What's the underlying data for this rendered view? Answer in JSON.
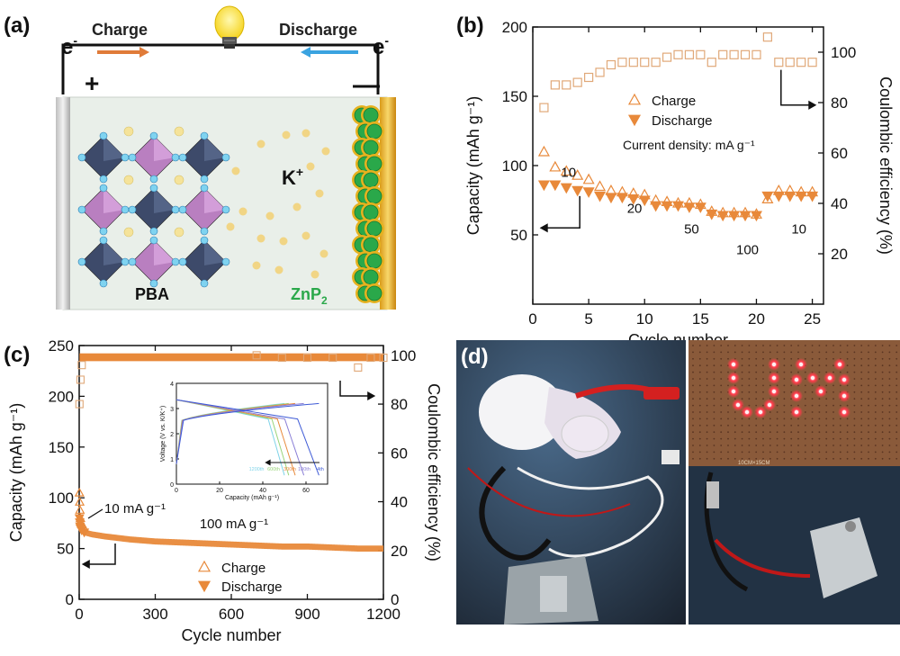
{
  "panel_a": {
    "label": "(a)",
    "charge_label": "Charge",
    "discharge_label": "Discharge",
    "electron_left": "e",
    "electron_right": "e",
    "electron_sup": "-",
    "plus_sign": "+",
    "minus_sign": "—",
    "cathode_label": "PBA",
    "anode_label": "ZnP",
    "anode_sub": "2",
    "ion_label": "K",
    "ion_sup": "+",
    "colors": {
      "charge_arrow": "#e07b39",
      "discharge_arrow": "#3aa3e0",
      "anode": "#2aa84a",
      "ion": "#f2d27a"
    }
  },
  "panel_b": {
    "label": "(b)",
    "chart_data": {
      "type": "scatter",
      "xlabel": "Cycle number",
      "ylabel_left": "Capacity (mAh g⁻¹)",
      "ylabel_right": "Coulombic efficiency (%)",
      "xlim": [
        0,
        26
      ],
      "ylim_left": [
        0,
        200
      ],
      "ylim_right": [
        0,
        110
      ],
      "xticks": [
        0,
        5,
        10,
        15,
        20,
        25
      ],
      "yticks_left": [
        50,
        100,
        150,
        200
      ],
      "yticks_right": [
        20,
        40,
        60,
        80,
        100
      ],
      "legend": [
        "Charge",
        "Discharge"
      ],
      "annotation": "Current density: mA g⁻¹",
      "rate_labels": [
        "10",
        "20",
        "50",
        "100",
        "10"
      ],
      "series": [
        {
          "name": "Charge",
          "axis": "left",
          "marker": "open-triangle",
          "x": [
            1,
            2,
            3,
            4,
            5,
            6,
            7,
            8,
            9,
            10,
            11,
            12,
            13,
            14,
            15,
            16,
            17,
            18,
            19,
            20,
            21,
            22,
            23,
            24,
            25
          ],
          "values": [
            110,
            99,
            96,
            93,
            90,
            85,
            82,
            81,
            80,
            79,
            75,
            74,
            73,
            73,
            72,
            67,
            66,
            66,
            66,
            65,
            76,
            82,
            82,
            81,
            81
          ]
        },
        {
          "name": "Discharge",
          "axis": "left",
          "marker": "filled-triangle",
          "x": [
            1,
            2,
            3,
            4,
            5,
            6,
            7,
            8,
            9,
            10,
            11,
            12,
            13,
            14,
            15,
            16,
            17,
            18,
            19,
            20,
            21,
            22,
            23,
            24,
            25
          ],
          "values": [
            86,
            86,
            84,
            82,
            81,
            78,
            77,
            77,
            76,
            75,
            71,
            71,
            71,
            70,
            70,
            65,
            64,
            64,
            64,
            64,
            78,
            78,
            78,
            78,
            78
          ]
        },
        {
          "name": "Coulombic efficiency",
          "axis": "right",
          "marker": "open-square",
          "x": [
            1,
            2,
            3,
            4,
            5,
            6,
            7,
            8,
            9,
            10,
            11,
            12,
            13,
            14,
            15,
            16,
            17,
            18,
            19,
            20,
            21,
            22,
            23,
            24,
            25
          ],
          "values": [
            78,
            87,
            87,
            88,
            90,
            92,
            95,
            96,
            96,
            96,
            96,
            98,
            99,
            99,
            99,
            96,
            99,
            99,
            99,
            99,
            106,
            96,
            96,
            96,
            96
          ]
        }
      ]
    }
  },
  "panel_c": {
    "label": "(c)",
    "chart_data": {
      "type": "scatter",
      "xlabel": "Cycle number",
      "ylabel_left": "Capacity (mAh g⁻¹)",
      "ylabel_right": "Coulombic efficiency (%)",
      "xlim": [
        0,
        1200
      ],
      "ylim_left": [
        0,
        250
      ],
      "ylim_right": [
        0,
        104
      ],
      "xticks": [
        0,
        300,
        600,
        900,
        1200
      ],
      "yticks_left": [
        0,
        50,
        100,
        150,
        200,
        250
      ],
      "yticks_right": [
        0,
        20,
        40,
        60,
        80,
        100
      ],
      "legend": [
        "Charge",
        "Discharge"
      ],
      "annotations": [
        "10 mA g⁻¹",
        "100 mA g⁻¹"
      ],
      "series": [
        {
          "name": "Charge",
          "axis": "left",
          "marker": "open-triangle",
          "x": [
            1,
            2,
            3,
            5,
            10,
            20,
            50,
            100,
            200,
            300,
            400,
            500,
            600,
            700,
            800,
            900,
            1000,
            1100,
            1200
          ],
          "values": [
            105,
            96,
            88,
            80,
            74,
            70,
            66,
            63,
            60,
            58,
            56,
            55,
            54,
            53,
            53,
            52,
            51,
            51,
            50
          ]
        },
        {
          "name": "Discharge",
          "axis": "left",
          "marker": "filled-triangle",
          "x": [
            1,
            2,
            3,
            5,
            10,
            20,
            50,
            100,
            200,
            300,
            400,
            500,
            600,
            700,
            800,
            900,
            1000,
            1100,
            1200
          ],
          "values": [
            80,
            76,
            72,
            70,
            68,
            66,
            64,
            62,
            59,
            57,
            56,
            55,
            54,
            53,
            52,
            52,
            51,
            50,
            50
          ]
        },
        {
          "name": "Coulombic efficiency",
          "axis": "right",
          "marker": "open-square",
          "x": [
            1,
            5,
            10,
            20,
            50,
            100,
            300,
            600,
            700,
            800,
            900,
            1000,
            1100,
            1150,
            1200
          ],
          "values": [
            80,
            90,
            96,
            98,
            99,
            99,
            99,
            99,
            100,
            99,
            99,
            99,
            95,
            99,
            99
          ]
        }
      ]
    },
    "inset": {
      "chart_data": {
        "type": "line",
        "xlabel": "Capacity (mAh g⁻¹)",
        "ylabel": "Voltage (V vs. K/K⁺)",
        "xlim": [
          0,
          70
        ],
        "ylim": [
          0,
          4
        ],
        "xticks": [
          0,
          20,
          40,
          60
        ],
        "yticks": [
          0,
          1,
          2,
          3,
          4
        ],
        "legend": [
          "1200th",
          "600th",
          "300th",
          "100th",
          "4th"
        ],
        "series_colors": [
          "#7fd3e8",
          "#9ad47a",
          "#e88a3c",
          "#8a7fd6",
          "#3f5bd6"
        ],
        "capacities": [
          50,
          52,
          55,
          59,
          66
        ]
      }
    }
  },
  "panel_d": {
    "label": "(d)",
    "board_text": "10CM×15CM",
    "led_text": "UM",
    "colors": {
      "led": "#ff3b4a",
      "board": "#8a5a3a"
    }
  }
}
